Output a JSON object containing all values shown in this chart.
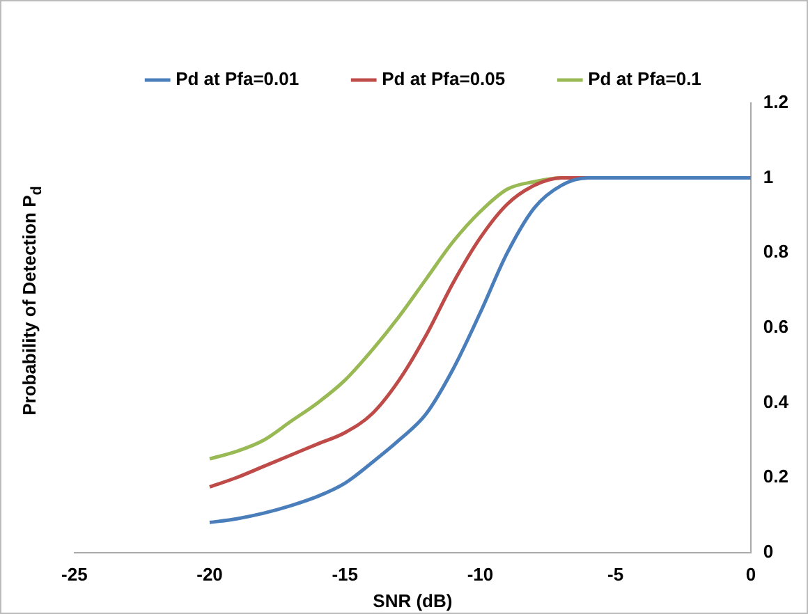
{
  "chart_data": {
    "type": "line",
    "xlabel": "SNR (dB)",
    "ylabel": "Probability of Detection P$_{d}$",
    "xlim": [
      -25,
      0
    ],
    "xticks": [
      -25,
      -20,
      -15,
      -10,
      -5,
      0
    ],
    "ylim": [
      0,
      1.2
    ],
    "yticks": [
      0,
      0.2,
      0.4,
      0.6,
      0.8,
      1,
      1.2
    ],
    "grid": false,
    "legend": "top",
    "marker": "none",
    "line_style": "solid",
    "series": [
      {
        "name": "Pd at Pfa=0.01",
        "color": "#4a7ebb",
        "x": [
          -20,
          -19,
          -18,
          -17,
          -16,
          -15,
          -14,
          -13,
          -12,
          -11,
          -10,
          -9,
          -8,
          -7,
          -6,
          -5,
          -4,
          -3,
          -2,
          -1,
          0
        ],
        "values": [
          0.08,
          0.09,
          0.105,
          0.125,
          0.15,
          0.185,
          0.24,
          0.3,
          0.37,
          0.49,
          0.64,
          0.8,
          0.92,
          0.98,
          1,
          1,
          1,
          1,
          1,
          1,
          1
        ]
      },
      {
        "name": "Pd at Pfa=0.05",
        "color": "#be4b48",
        "x": [
          -20,
          -19,
          -18,
          -17,
          -16,
          -15,
          -14,
          -13,
          -12,
          -11,
          -10,
          -9,
          -8,
          -7,
          -6
        ],
        "values": [
          0.175,
          0.2,
          0.23,
          0.26,
          0.29,
          0.32,
          0.37,
          0.46,
          0.58,
          0.72,
          0.84,
          0.93,
          0.98,
          1,
          1
        ]
      },
      {
        "name": "Pd at Pfa=0.1",
        "color": "#98b954",
        "x": [
          -20,
          -19,
          -18,
          -17,
          -16,
          -15,
          -14,
          -13,
          -12,
          -11,
          -10,
          -9,
          -8,
          -7,
          -6
        ],
        "values": [
          0.25,
          0.27,
          0.3,
          0.35,
          0.4,
          0.46,
          0.54,
          0.63,
          0.73,
          0.83,
          0.91,
          0.97,
          0.99,
          1,
          1
        ]
      }
    ]
  }
}
